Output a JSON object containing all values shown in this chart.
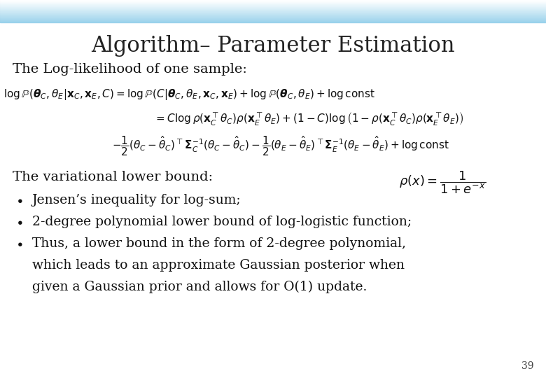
{
  "title": "Algorithm– Parameter Estimation",
  "title_fontsize": 22,
  "title_color": "#222222",
  "subtitle1": "The Log-likelihood of one sample:",
  "subtitle1_fontsize": 14,
  "subtitle2": "The variational lower bound:",
  "subtitle2_fontsize": 14,
  "bullet1": "Jensen’s inequality for log-sum;",
  "bullet2": "2-degree polynomial lower bound of log-logistic function;",
  "bullet3_line1": "Thus, a lower bound in the form of 2-degree polynomial,",
  "bullet3_line2": "which leads to an approximate Gaussian posterior when",
  "bullet3_line3": "given a Gaussian prior and allows for O(1) update.",
  "page_num": "39",
  "math_fontsize": 11,
  "bullet_fontsize": 13.5
}
